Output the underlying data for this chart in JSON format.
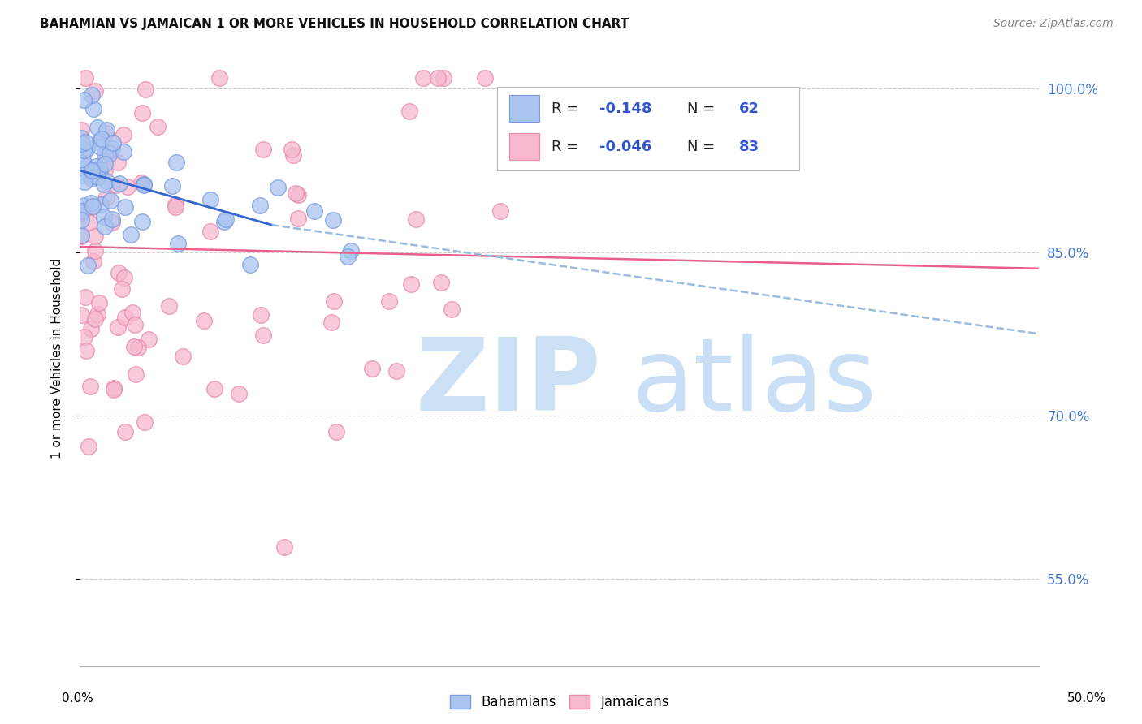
{
  "title": "BAHAMIAN VS JAMAICAN 1 OR MORE VEHICLES IN HOUSEHOLD CORRELATION CHART",
  "source": "Source: ZipAtlas.com",
  "ylabel": "1 or more Vehicles in Household",
  "xlim": [
    0.0,
    50.0
  ],
  "ylim": [
    47.0,
    103.5
  ],
  "yticks": [
    55.0,
    70.0,
    85.0,
    100.0
  ],
  "ytick_labels": [
    "55.0%",
    "70.0%",
    "85.0%",
    "100.0%"
  ],
  "bahamian_color": "#aac4f0",
  "jamaican_color": "#f5b8ce",
  "bahamian_edge": "#7799dd",
  "jamaican_edge": "#e888aa",
  "trend_blue_color": "#3366cc",
  "trend_pink_color": "#e8608a",
  "trend_dashed_color": "#99bbdd",
  "legend_color": "#3355cc",
  "watermark_zip_color": "#cce0f5",
  "watermark_atlas_color": "#c8dff5",
  "n_bahamians": 62,
  "n_jamaicans": 83,
  "r_bahamians": -0.148,
  "r_jamaicans": -0.046,
  "blue_trend_x0": 0.0,
  "blue_trend_x1": 10.0,
  "blue_trend_y0": 92.5,
  "blue_trend_y1": 87.5,
  "dash_trend_x0": 10.0,
  "dash_trend_x1": 50.0,
  "dash_trend_y0": 87.5,
  "dash_trend_y1": 77.5,
  "pink_trend_x0": 0.0,
  "pink_trend_x1": 50.0,
  "pink_trend_y0": 85.5,
  "pink_trend_y1": 83.5
}
